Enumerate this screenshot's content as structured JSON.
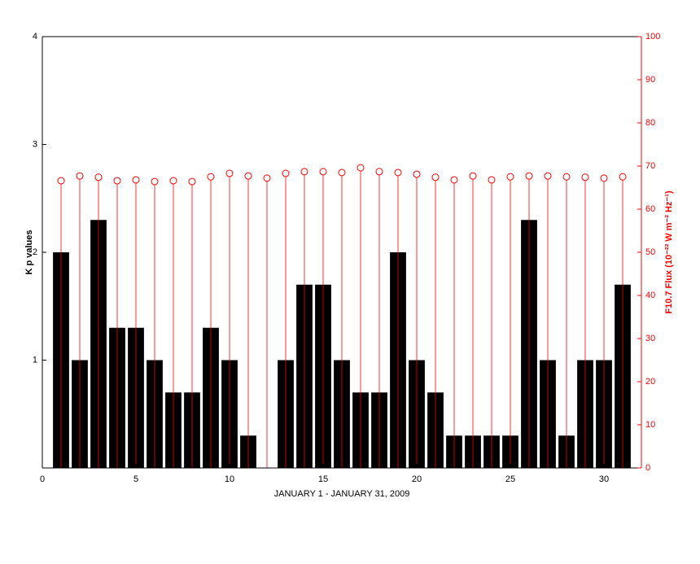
{
  "chart_data": {
    "type": "bar",
    "x_label": "JANUARY 1 - JANUARY 31, 2009",
    "y_label": "K p values",
    "y2_label": "F10.7 Flux (10⁻²² W m⁻² Hz⁻¹)",
    "x": [
      1,
      2,
      3,
      4,
      5,
      6,
      7,
      8,
      9,
      10,
      11,
      12,
      13,
      14,
      15,
      16,
      17,
      18,
      19,
      20,
      21,
      22,
      23,
      24,
      25,
      26,
      27,
      28,
      29,
      30,
      31
    ],
    "xlim": [
      0,
      32
    ],
    "xticks": [
      0,
      5,
      10,
      15,
      20,
      25,
      30
    ],
    "ylim": [
      0,
      4
    ],
    "yticks": [
      1,
      2,
      3,
      4
    ],
    "y2lim": [
      0,
      100
    ],
    "y2ticks": [
      0,
      10,
      20,
      30,
      40,
      50,
      60,
      70,
      80,
      90,
      100
    ],
    "series": [
      {
        "type": "bar",
        "color": "#000000",
        "values": [
          2.0,
          1.0,
          2.3,
          1.3,
          1.3,
          1.0,
          0.7,
          0.7,
          1.3,
          1.0,
          0.3,
          0,
          1.0,
          1.7,
          1.7,
          1.0,
          0.7,
          0.7,
          2.0,
          1.0,
          0.7,
          0.3,
          0.3,
          0.3,
          0.3,
          2.3,
          1.0,
          0.3,
          1.0,
          1.0,
          1.7
        ]
      },
      {
        "type": "stem",
        "axis": "y2",
        "color": "#ff0000",
        "values": [
          66.6,
          67.7,
          67.4,
          66.6,
          66.8,
          66.4,
          66.6,
          66.4,
          67.5,
          68.3,
          67.7,
          67.2,
          68.3,
          68.7,
          68.7,
          68.5,
          69.6,
          68.7,
          68.5,
          68.1,
          67.4,
          66.8,
          67.7,
          66.8,
          67.5,
          67.7,
          67.7,
          67.5,
          67.4,
          67.2,
          67.5
        ]
      }
    ]
  }
}
